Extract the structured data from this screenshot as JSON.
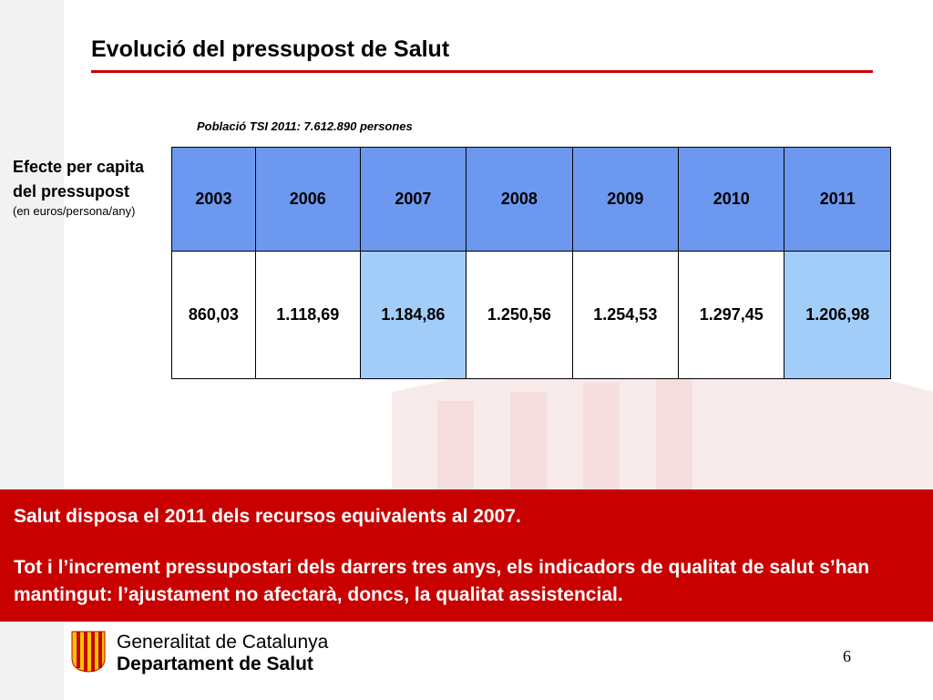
{
  "title": "Evolució del pressupost de Salut",
  "population_note": "Població TSI 2011: 7.612.890 persones",
  "side_label": {
    "main": "Efecte per capita del pressupost",
    "sub": "(en euros/persona/any)"
  },
  "table": {
    "years": [
      "2003",
      "2006",
      "2007",
      "2008",
      "2009",
      "2010",
      "2011"
    ],
    "values": [
      "860,03",
      "1.118,69",
      "1.184,86",
      "1.250,56",
      "1.254,53",
      "1.297,45",
      "1.206,98"
    ]
  },
  "banner": {
    "line1": "Salut disposa el 2011 dels recursos equivalents al 2007.",
    "line2": "Tot i l’increment pressupostari dels darrers tres anys, els indicadors de qualitat de salut s’han mantingut: l’ajustament no afectarà, doncs, la qualitat assistencial."
  },
  "footer": {
    "org_line1": "Generalitat de Catalunya",
    "org_line2": "Departament de Salut",
    "page_number": "6"
  },
  "colors": {
    "accent_red": "#c80000",
    "header_blue": "#6c98ef",
    "highlight_blue": "#a3cdf9"
  }
}
